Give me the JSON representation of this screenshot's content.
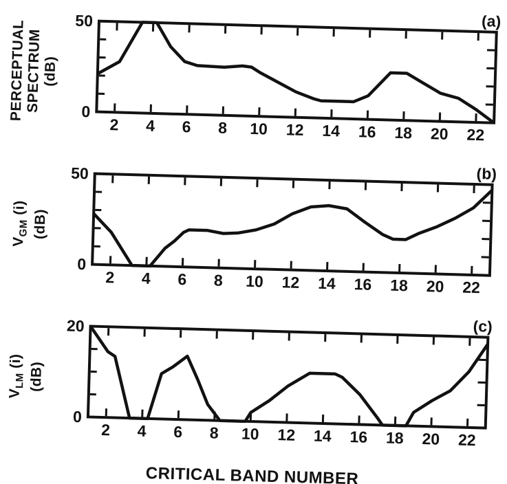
{
  "figure": {
    "x_axis_title": "CRITICAL BAND NUMBER",
    "background_color": "#ffffff",
    "ink_color": "#121212"
  },
  "chart_data": [
    {
      "type": "line",
      "panel_label": "(a)",
      "ylabel_text": "PERCEPTUAL SPECTRUM (dB)",
      "y_axis_label_lines": [
        [
          {
            "t": "PERCEPTUAL"
          }
        ],
        [
          {
            "t": "SPECTRUM"
          }
        ],
        [
          {
            "t": "(dB)"
          }
        ]
      ],
      "xlabel": "CRITICAL BAND NUMBER",
      "xlim": [
        1,
        23
      ],
      "ylim": [
        0,
        50
      ],
      "x_tick_labels": [
        2,
        4,
        6,
        8,
        10,
        12,
        14,
        16,
        18,
        20,
        22
      ],
      "y_tick_labels": [
        0,
        50
      ],
      "y_minor_ticks": [
        10,
        20,
        30,
        40
      ],
      "grid": "off",
      "points": [
        [
          1,
          21
        ],
        [
          2.2,
          28
        ],
        [
          3.4,
          50
        ],
        [
          4.2,
          50
        ],
        [
          5,
          37
        ],
        [
          5.8,
          29
        ],
        [
          6.5,
          27
        ],
        [
          8,
          26.5
        ],
        [
          9,
          27.5
        ],
        [
          9.5,
          27
        ],
        [
          10,
          24
        ],
        [
          11,
          19
        ],
        [
          12,
          14
        ],
        [
          13,
          10.5
        ],
        [
          13.4,
          9.5
        ],
        [
          15.2,
          9.5
        ],
        [
          16,
          13
        ],
        [
          17.2,
          26
        ],
        [
          18.1,
          26
        ],
        [
          19,
          21
        ],
        [
          20,
          15.5
        ],
        [
          21,
          13
        ],
        [
          22,
          7
        ],
        [
          23,
          0
        ]
      ]
    },
    {
      "type": "line",
      "panel_label": "(b)",
      "ylabel_text": "VGM (i) (dB)",
      "y_axis_label_lines": [
        [
          {
            "t": "V"
          },
          {
            "t": "GM",
            "sub": true
          },
          {
            "t": " (i)"
          }
        ],
        [
          {
            "t": "(dB)"
          }
        ]
      ],
      "xlabel": "CRITICAL BAND NUMBER",
      "xlim": [
        1,
        23
      ],
      "ylim": [
        0,
        50
      ],
      "x_tick_labels": [
        2,
        4,
        6,
        8,
        10,
        12,
        14,
        16,
        18,
        20,
        22
      ],
      "y_tick_labels": [
        0,
        50
      ],
      "y_minor_ticks": [
        10,
        20,
        30,
        40
      ],
      "grid": "off",
      "points": [
        [
          1,
          28
        ],
        [
          2,
          18
        ],
        [
          3.2,
          0
        ],
        [
          4.2,
          0
        ],
        [
          5,
          10
        ],
        [
          5.5,
          14
        ],
        [
          6,
          19
        ],
        [
          6.3,
          20.5
        ],
        [
          7.3,
          20.5
        ],
        [
          8.2,
          19
        ],
        [
          9,
          19.5
        ],
        [
          10,
          21.5
        ],
        [
          11,
          25
        ],
        [
          12,
          31
        ],
        [
          13,
          35
        ],
        [
          14,
          36
        ],
        [
          15,
          34.5
        ],
        [
          16,
          27.5
        ],
        [
          17,
          21
        ],
        [
          17.6,
          18.5
        ],
        [
          18.3,
          18.5
        ],
        [
          19,
          22
        ],
        [
          20,
          26
        ],
        [
          21,
          31
        ],
        [
          22,
          37
        ],
        [
          23,
          47
        ]
      ]
    },
    {
      "type": "line",
      "panel_label": "(c)",
      "ylabel_text": "VLM (i) (dB)",
      "y_axis_label_lines": [
        [
          {
            "t": "V"
          },
          {
            "t": "LM",
            "sub": true
          },
          {
            "t": " (i)"
          }
        ],
        [
          {
            "t": "(dB)"
          }
        ]
      ],
      "xlabel": "CRITICAL BAND NUMBER",
      "xlim": [
        1,
        23
      ],
      "ylim": [
        0,
        20
      ],
      "x_tick_labels": [
        2,
        4,
        6,
        8,
        10,
        12,
        14,
        16,
        18,
        20,
        22
      ],
      "y_tick_labels": [
        0,
        20
      ],
      "y_minor_ticks": [
        5,
        10,
        15
      ],
      "grid": "off",
      "points": [
        [
          1,
          20
        ],
        [
          2,
          14.5
        ],
        [
          2.4,
          13.5
        ],
        [
          3.3,
          0
        ],
        [
          4.3,
          0
        ],
        [
          5,
          10
        ],
        [
          5.6,
          11.5
        ],
        [
          6.4,
          14
        ],
        [
          7,
          9
        ],
        [
          7.6,
          3.5
        ],
        [
          8.3,
          0
        ],
        [
          9.7,
          0
        ],
        [
          10,
          2
        ],
        [
          11,
          4.7
        ],
        [
          12,
          8
        ],
        [
          13.2,
          11
        ],
        [
          14.6,
          11
        ],
        [
          15,
          10.3
        ],
        [
          16,
          6.6
        ],
        [
          17,
          1.6
        ],
        [
          17.3,
          0
        ],
        [
          18.6,
          0
        ],
        [
          19,
          3
        ],
        [
          20,
          5.7
        ],
        [
          21,
          8
        ],
        [
          22,
          12.3
        ],
        [
          23,
          18.5
        ]
      ]
    }
  ]
}
